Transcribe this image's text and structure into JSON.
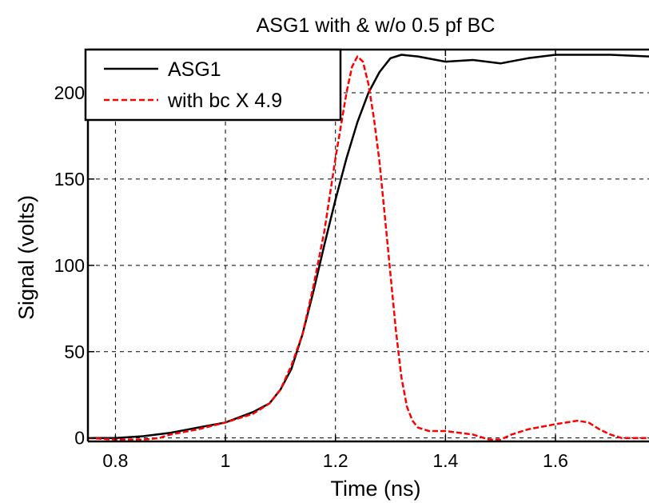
{
  "chart_data": {
    "type": "line",
    "title": "ASG1 with & w/o 0.5 pf BC",
    "xlabel": "Time (ns)",
    "ylabel": "Signal (volts)",
    "xlim": [
      0.75,
      1.77
    ],
    "ylim": [
      -2,
      225
    ],
    "xticks": [
      0.8,
      1,
      1.2,
      1.4,
      1.6
    ],
    "xtick_labels": [
      "0.8",
      "1",
      "1.2",
      "1.4",
      "1.6"
    ],
    "yticks": [
      0,
      50,
      100,
      150,
      200
    ],
    "ytick_labels": [
      "0",
      "50",
      "100",
      "150",
      "200"
    ],
    "grid": true,
    "legend_position": "top-left",
    "series": [
      {
        "name": "ASG1",
        "color": "#000000",
        "style": "solid",
        "x": [
          0.75,
          0.8,
          0.85,
          0.9,
          0.95,
          1.0,
          1.05,
          1.08,
          1.1,
          1.12,
          1.14,
          1.16,
          1.18,
          1.2,
          1.22,
          1.24,
          1.26,
          1.28,
          1.3,
          1.32,
          1.35,
          1.4,
          1.45,
          1.5,
          1.55,
          1.6,
          1.65,
          1.7,
          1.77
        ],
        "y": [
          0,
          0,
          1,
          3,
          6,
          9,
          15,
          20,
          28,
          40,
          60,
          85,
          112,
          138,
          162,
          183,
          200,
          212,
          220,
          222,
          221,
          218,
          219,
          217,
          220,
          222,
          222,
          222,
          221
        ]
      },
      {
        "name": "with bc X 4.9",
        "color": "#ff0000",
        "style": "dashed",
        "x": [
          0.75,
          0.8,
          0.85,
          0.88,
          0.9,
          0.95,
          1.0,
          1.05,
          1.08,
          1.1,
          1.12,
          1.14,
          1.16,
          1.18,
          1.2,
          1.22,
          1.23,
          1.24,
          1.25,
          1.26,
          1.27,
          1.28,
          1.29,
          1.3,
          1.31,
          1.32,
          1.33,
          1.34,
          1.35,
          1.37,
          1.4,
          1.45,
          1.48,
          1.5,
          1.52,
          1.55,
          1.6,
          1.64,
          1.66,
          1.68,
          1.7,
          1.72,
          1.77
        ],
        "y": [
          0,
          -1,
          -1,
          0,
          2,
          5,
          9,
          14,
          20,
          28,
          42,
          60,
          88,
          120,
          162,
          200,
          215,
          221,
          218,
          205,
          185,
          160,
          128,
          95,
          62,
          35,
          18,
          10,
          6,
          4,
          4,
          2,
          -1,
          -1,
          2,
          5,
          8,
          10,
          9,
          5,
          2,
          0,
          0
        ]
      }
    ]
  }
}
